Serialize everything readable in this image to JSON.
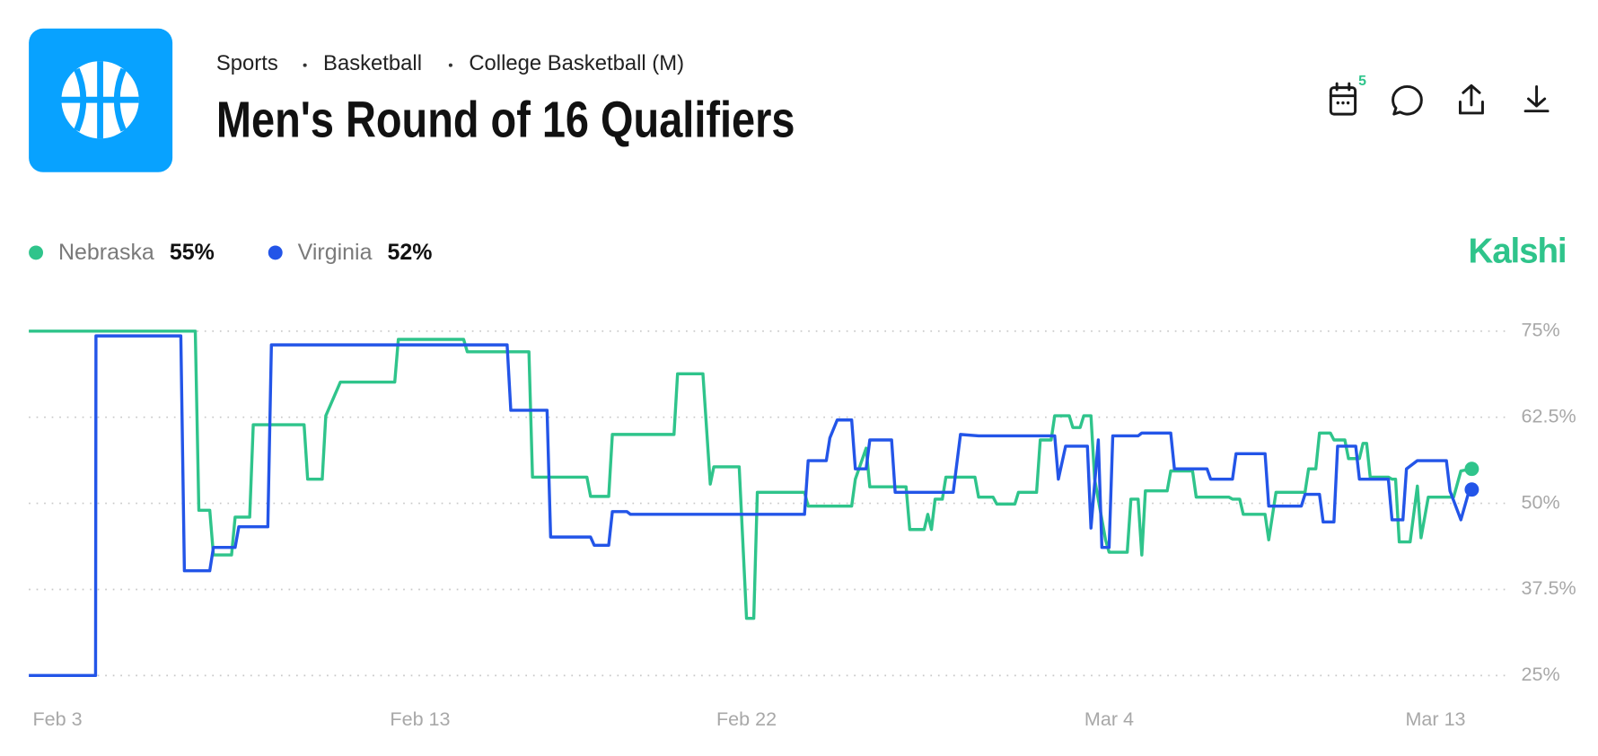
{
  "header": {
    "breadcrumbs": [
      "Sports",
      "Basketball",
      "College Basketball (M)"
    ],
    "title": "Men's Round of 16 Qualifiers",
    "calendar_badge": "5",
    "brand": "Kalshi"
  },
  "chart_data": {
    "type": "line",
    "series": [
      {
        "name": "Nebraska",
        "legend_value": "55%",
        "color": "#2fc48b",
        "x": [
          -0.79,
          3.8,
          3.9,
          4.2,
          4.3,
          4.8,
          4.9,
          5.3,
          5.4,
          6.8,
          6.9,
          7.3,
          7.4,
          7.8,
          9.3,
          9.4,
          11.2,
          11.3,
          13.0,
          13.1,
          14.6,
          14.7,
          15.2,
          15.3,
          17.0,
          17.1,
          17.8,
          18.0,
          18.1,
          18.8,
          19.0,
          19.2,
          19.3,
          20.6,
          20.7,
          21.9,
          22.0,
          22.3,
          22.4,
          23.4,
          23.5,
          23.9,
          24.0,
          24.1,
          24.2,
          24.4,
          24.5,
          25.3,
          25.4,
          25.8,
          25.9,
          26.4,
          26.5,
          27.0,
          27.1,
          27.4,
          27.5,
          27.9,
          28.0,
          28.2,
          28.3,
          28.5,
          28.6,
          28.9,
          29.0,
          29.5,
          29.6,
          29.8,
          29.9,
          30.0,
          30.6,
          30.7,
          31.3,
          31.4,
          32.3,
          32.4,
          32.6,
          32.7,
          33.3,
          33.4,
          33.6,
          34.4,
          34.5,
          34.7,
          34.8,
          35.1,
          35.2,
          35.5,
          35.6,
          35.9,
          36.0,
          36.1,
          36.2,
          36.7,
          36.8,
          36.9,
          37.0,
          37.3,
          37.5,
          37.6,
          37.8,
          38.5,
          38.7,
          39.0
        ],
        "values": [
          75,
          75,
          49,
          49,
          42.5,
          42.5,
          48,
          48,
          61.4,
          61.4,
          53.5,
          53.5,
          62.7,
          67.6,
          67.6,
          73.8,
          73.8,
          72,
          72,
          53.8,
          53.8,
          51,
          51,
          60,
          60,
          68.8,
          68.8,
          52.8,
          55.3,
          55.3,
          33.3,
          33.3,
          51.6,
          51.6,
          49.6,
          49.6,
          53.5,
          58,
          52.4,
          52.4,
          46.2,
          46.2,
          48.4,
          46.2,
          50.6,
          50.6,
          53.8,
          53.8,
          50.9,
          50.9,
          49.9,
          49.9,
          51.6,
          51.6,
          59.2,
          59.2,
          62.7,
          62.7,
          61,
          61,
          62.7,
          62.7,
          53.5,
          44.7,
          42.9,
          42.9,
          50.6,
          50.6,
          42.5,
          51.8,
          51.8,
          54.7,
          54.7,
          50.9,
          50.9,
          50.6,
          50.6,
          48.4,
          48.4,
          44.7,
          51.6,
          51.6,
          55,
          55,
          60.2,
          60.2,
          59.2,
          59.2,
          56.5,
          56.5,
          58.7,
          58.7,
          53.8,
          53.8,
          53.5,
          53.5,
          44.4,
          44.4,
          52.5,
          45,
          50.9,
          50.9,
          54.7,
          55
        ]
      },
      {
        "name": "Virginia",
        "legend_value": "52%",
        "color": "#2355e8",
        "x": [
          -0.79,
          1.05,
          1.06,
          3.4,
          3.5,
          4.2,
          4.3,
          4.9,
          5.0,
          5.8,
          5.9,
          12.4,
          12.5,
          13.5,
          13.6,
          14.7,
          14.8,
          15.2,
          15.3,
          15.7,
          15.8,
          20.6,
          20.7,
          21.2,
          21.3,
          21.5,
          21.9,
          22.0,
          22.3,
          22.4,
          23.0,
          23.1,
          24.7,
          24.9,
          25.4,
          27.5,
          27.6,
          27.8,
          28.4,
          28.5,
          28.7,
          28.8,
          29.0,
          29.1,
          29.8,
          29.9,
          30.7,
          30.8,
          31.7,
          31.8,
          32.4,
          32.5,
          33.3,
          33.4,
          34.3,
          34.4,
          34.8,
          34.9,
          35.2,
          35.3,
          35.8,
          35.9,
          36.7,
          36.8,
          37.1,
          37.2,
          37.5,
          38.3,
          38.4,
          38.7,
          38.9,
          39.0
        ],
        "values": [
          25,
          25,
          74.3,
          74.3,
          40.2,
          40.2,
          43.6,
          43.6,
          46.6,
          46.6,
          73,
          73,
          63.5,
          63.5,
          45.1,
          45.1,
          43.9,
          43.9,
          48.8,
          48.8,
          48.4,
          48.4,
          56.2,
          56.2,
          59.5,
          62.1,
          62.1,
          55,
          55,
          59.2,
          59.2,
          51.6,
          51.6,
          60,
          59.8,
          59.8,
          53.5,
          58.3,
          58.3,
          46.4,
          59.2,
          43.6,
          43.6,
          59.8,
          59.8,
          60.2,
          60.2,
          55,
          55,
          53.5,
          53.5,
          57.2,
          57.2,
          49.6,
          49.6,
          51.3,
          51.3,
          47.3,
          47.3,
          58.3,
          58.3,
          53.5,
          53.5,
          47.6,
          47.6,
          55,
          56.2,
          56.2,
          51.8,
          47.6,
          51.3,
          52
        ]
      }
    ],
    "xlim": [
      -0.79,
      40
    ],
    "xticks": [
      {
        "value": 0,
        "label": "Feb 3"
      },
      {
        "value": 10,
        "label": "Feb 13"
      },
      {
        "value": 19,
        "label": "Feb 22"
      },
      {
        "value": 29,
        "label": "Mar 4"
      },
      {
        "value": 38,
        "label": "Mar 13"
      }
    ],
    "ylim": [
      25,
      75
    ],
    "yticks": [
      {
        "value": 75,
        "label": "75%"
      },
      {
        "value": 62.5,
        "label": "62.5%"
      },
      {
        "value": 50,
        "label": "50%"
      },
      {
        "value": 37.5,
        "label": "37.5%"
      },
      {
        "value": 25,
        "label": "25%"
      }
    ],
    "grid": true,
    "legend": "top-left"
  }
}
